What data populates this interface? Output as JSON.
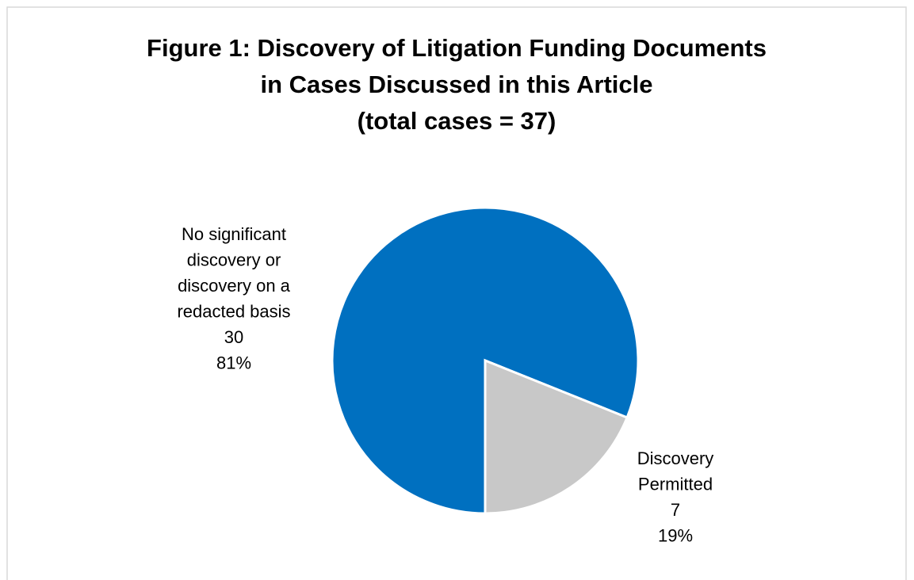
{
  "chart_data": {
    "type": "pie",
    "title": [
      "Figure 1: Discovery of Litigation Funding Documents",
      "in Cases Discussed in this Article",
      "(total cases = 37)"
    ],
    "categories": [
      [
        "No significant",
        "discovery or",
        "discovery on a",
        "redacted basis"
      ],
      [
        "Discovery",
        "Permitted"
      ]
    ],
    "values": [
      30,
      7
    ],
    "percent_labels": [
      "81%",
      "19%"
    ],
    "colors": [
      "#0070c0",
      "#c8c8c8"
    ]
  }
}
